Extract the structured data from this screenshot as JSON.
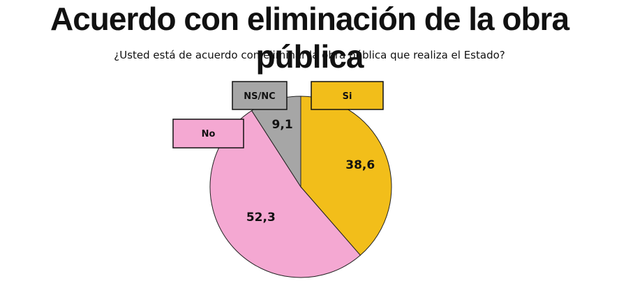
{
  "title": "Acuerdo con eliminación de la obra pública",
  "subtitle": "¿Usted está de acuerdo con eliminar la obra pública que realiza el Estado?",
  "chart_data": {
    "type": "pie",
    "title": "Acuerdo con eliminación de la obra pública",
    "subtitle": "¿Usted está de acuerdo con eliminar la obra pública que realiza el Estado?",
    "start": "12 o'clock, clockwise",
    "slices": [
      {
        "label": "Si",
        "value": 38.6,
        "display": "38,6",
        "color": "#f2be1a"
      },
      {
        "label": "No",
        "value": 52.3,
        "display": "52,3",
        "color": "#f4a8d2"
      },
      {
        "label": "NS/NC",
        "value": 9.1,
        "display": "9,1",
        "color": "#a6a6a6"
      }
    ]
  }
}
